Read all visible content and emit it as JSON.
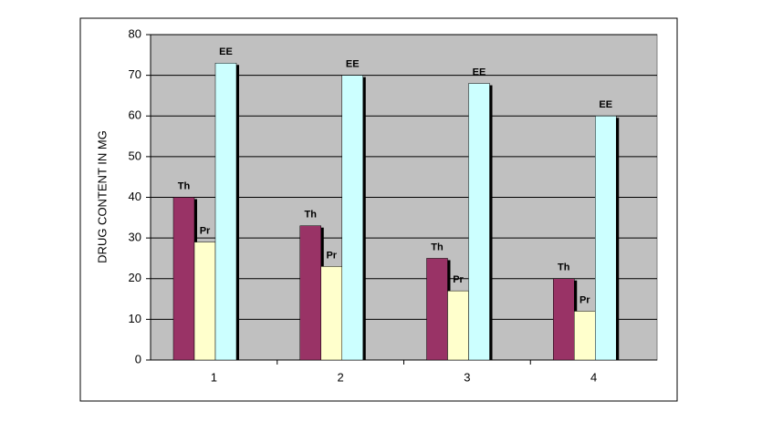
{
  "chart_data": {
    "type": "bar",
    "y_label": "DRUG CONTENT IN MG",
    "categories": [
      "1",
      "2",
      "3",
      "4"
    ],
    "series": [
      {
        "name": "Th",
        "color": "#993366",
        "values": [
          40,
          33,
          25,
          20
        ]
      },
      {
        "name": "Pr",
        "color": "#ffffcc",
        "values": [
          29,
          23,
          17,
          12
        ]
      },
      {
        "name": "EE",
        "color": "#ccffff",
        "values": [
          73,
          70,
          68,
          60
        ]
      }
    ],
    "ylim": [
      0,
      80
    ],
    "yticks": [
      0,
      10,
      20,
      30,
      40,
      50,
      60,
      70,
      80
    ],
    "grid": true,
    "plot_background": "#c0c0c0"
  }
}
